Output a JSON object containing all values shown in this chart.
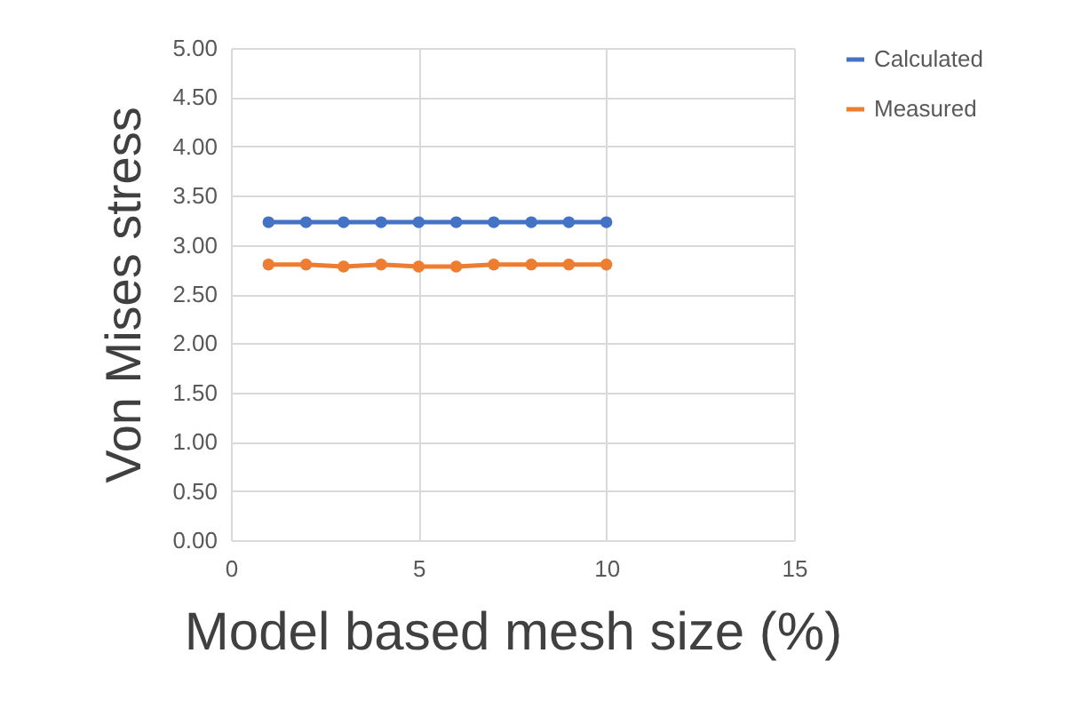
{
  "chart_data": {
    "type": "line",
    "xlabel": "Model based mesh size (%)",
    "ylabel": "Von Mises stress",
    "x": [
      1,
      2,
      3,
      4,
      5,
      6,
      7,
      8,
      9,
      10
    ],
    "series": [
      {
        "name": "Calculated",
        "color": "#4472c4",
        "values": [
          3.23,
          3.23,
          3.23,
          3.23,
          3.23,
          3.23,
          3.23,
          3.23,
          3.23,
          3.23
        ]
      },
      {
        "name": "Measured",
        "color": "#ed7d31",
        "values": [
          2.8,
          2.8,
          2.78,
          2.8,
          2.78,
          2.78,
          2.8,
          2.8,
          2.8,
          2.8
        ]
      }
    ],
    "xlim": [
      0,
      15
    ],
    "xticks": [
      0,
      5,
      10,
      15
    ],
    "ylim": [
      0,
      5
    ],
    "yticks": [
      {
        "value": 0,
        "label": "0.00"
      },
      {
        "value": 0.5,
        "label": "0.50"
      },
      {
        "value": 1,
        "label": "1.00"
      },
      {
        "value": 1.5,
        "label": "1.50"
      },
      {
        "value": 2,
        "label": "2.00"
      },
      {
        "value": 2.5,
        "label": "2.50"
      },
      {
        "value": 3,
        "label": "3.00"
      },
      {
        "value": 3.5,
        "label": "3.50"
      },
      {
        "value": 4,
        "label": "4.00"
      },
      {
        "value": 4.5,
        "label": "4.50"
      },
      {
        "value": 5,
        "label": "5.00"
      }
    ],
    "grid": true,
    "legend": "right",
    "marker": "circle",
    "line_style": "solid"
  }
}
